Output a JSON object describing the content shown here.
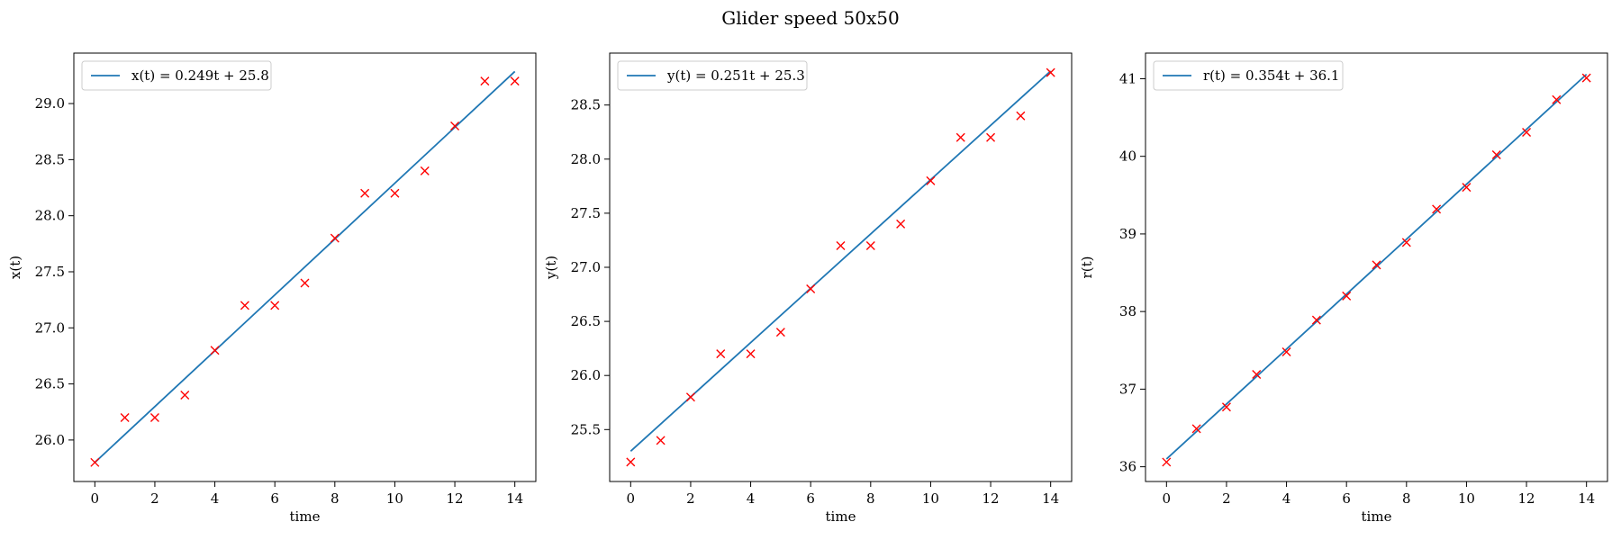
{
  "figure": {
    "title": "Glider speed 50x50"
  },
  "chart_data": [
    {
      "type": "scatter",
      "xlabel": "time",
      "ylabel": "x(t)",
      "xlim": [
        -0.7,
        14.7
      ],
      "ylim": [
        25.63,
        29.45
      ],
      "xticks": [
        0,
        2,
        4,
        6,
        8,
        10,
        12,
        14
      ],
      "yticks": [
        26.0,
        26.5,
        27.0,
        27.5,
        28.0,
        28.5,
        29.0
      ],
      "x": [
        0,
        1,
        2,
        3,
        4,
        5,
        6,
        7,
        8,
        9,
        10,
        11,
        12,
        13,
        14
      ],
      "y": [
        25.8,
        26.2,
        26.2,
        26.4,
        26.8,
        27.2,
        27.2,
        27.4,
        27.8,
        28.2,
        28.2,
        28.4,
        28.8,
        29.2,
        29.2
      ],
      "fit": {
        "label": "x(t) = 0.249t + 25.8",
        "slope": 0.249,
        "intercept": 25.8
      },
      "legend": "top-left",
      "colors": {
        "points": "#ff0000",
        "fit": "#1f77b4"
      }
    },
    {
      "type": "scatter",
      "xlabel": "time",
      "ylabel": "y(t)",
      "xlim": [
        -0.7,
        14.7
      ],
      "ylim": [
        25.02,
        28.98
      ],
      "xticks": [
        0,
        2,
        4,
        6,
        8,
        10,
        12,
        14
      ],
      "yticks": [
        25.5,
        26.0,
        26.5,
        27.0,
        27.5,
        28.0,
        28.5
      ],
      "x": [
        0,
        1,
        2,
        3,
        4,
        5,
        6,
        7,
        8,
        9,
        10,
        11,
        12,
        13,
        14
      ],
      "y": [
        25.2,
        25.4,
        25.8,
        26.2,
        26.2,
        26.4,
        26.8,
        27.2,
        27.2,
        27.4,
        27.8,
        28.2,
        28.2,
        28.4,
        28.8
      ],
      "fit": {
        "label": "y(t) = 0.251t + 25.3",
        "slope": 0.251,
        "intercept": 25.3
      },
      "legend": "top-left",
      "colors": {
        "points": "#ff0000",
        "fit": "#1f77b4"
      }
    },
    {
      "type": "scatter",
      "xlabel": "time",
      "ylabel": "r(t)",
      "xlim": [
        -0.7,
        14.7
      ],
      "ylim": [
        35.81,
        41.33
      ],
      "xticks": [
        0,
        2,
        4,
        6,
        8,
        10,
        12,
        14
      ],
      "yticks": [
        36,
        37,
        38,
        39,
        40,
        41
      ],
      "x": [
        0,
        1,
        2,
        3,
        4,
        5,
        6,
        7,
        8,
        9,
        10,
        11,
        12,
        13,
        14
      ],
      "y": [
        36.06,
        36.49,
        36.77,
        37.19,
        37.48,
        37.89,
        38.2,
        38.6,
        38.89,
        39.32,
        39.6,
        40.02,
        40.31,
        40.73,
        41.01
      ],
      "fit": {
        "label": "r(t) = 0.354t + 36.1",
        "slope": 0.354,
        "intercept": 36.1
      },
      "legend": "top-left",
      "colors": {
        "points": "#ff0000",
        "fit": "#1f77b4"
      }
    }
  ]
}
